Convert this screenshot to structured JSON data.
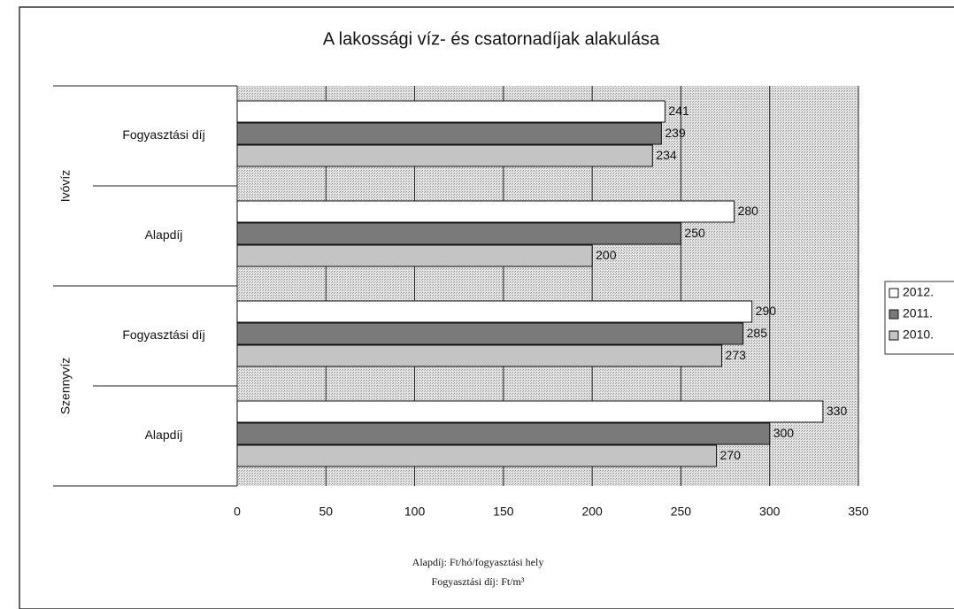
{
  "chart_data": {
    "type": "bar",
    "orientation": "horizontal",
    "title": "A lakossági víz- és csatornadíjak alakulása",
    "groups": [
      {
        "label": "Ivóvíz",
        "categories": [
          "Fogyasztási díj",
          "Alapdíj"
        ]
      },
      {
        "label": "Szennyvíz",
        "categories": [
          "Fogyasztási díj",
          "Alapdíj"
        ]
      }
    ],
    "series": [
      {
        "name": "2012.",
        "color": "#ffffff",
        "values": [
          241,
          280,
          290,
          330
        ]
      },
      {
        "name": "2011.",
        "color": "#7a7a7a",
        "values": [
          239,
          250,
          285,
          300
        ]
      },
      {
        "name": "2010.",
        "color": "#c4c4c4",
        "values": [
          234,
          200,
          273,
          270
        ]
      }
    ],
    "xlim": [
      0,
      350
    ],
    "xticks": [
      0,
      50,
      100,
      150,
      200,
      250,
      300,
      350
    ],
    "grid": true,
    "legend": "right",
    "notes": [
      "Alapdíj: Ft/hó/fogyasztási hely",
      "Fogyasztási díj: Ft/m³"
    ]
  }
}
